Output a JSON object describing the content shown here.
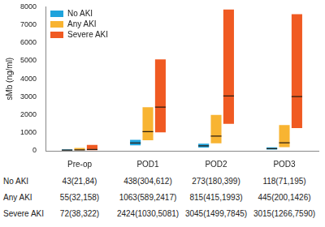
{
  "chart_data": {
    "type": "bar",
    "y_label": "sMb (ng/ml)",
    "categories": [
      "Pre-op",
      "POD1",
      "POD2",
      "POD3"
    ],
    "ylim": [
      0,
      8000
    ],
    "yticks": [
      0,
      1000,
      2000,
      3000,
      4000,
      5000,
      6000,
      7000,
      8000
    ],
    "grid": false,
    "legend": "top-left",
    "series": [
      {
        "name": "No AKI",
        "color": "#1fa3dc",
        "values": [
          43,
          438,
          273,
          118
        ],
        "q1": [
          21,
          304,
          180,
          71
        ],
        "q3": [
          84,
          612,
          399,
          195
        ]
      },
      {
        "name": "Any AKI",
        "color": "#f8b432",
        "values": [
          55,
          1063,
          815,
          445
        ],
        "q1": [
          32,
          589,
          415,
          200
        ],
        "q3": [
          158,
          2417,
          1993,
          1426
        ]
      },
      {
        "name": "Severe AKI",
        "color": "#f05a22",
        "values": [
          72,
          2424,
          3045,
          3015
        ],
        "q1": [
          38,
          1030,
          1499,
          1266
        ],
        "q3": [
          322,
          5081,
          7845,
          7590
        ]
      }
    ],
    "table": {
      "rows": [
        {
          "label": "No AKI",
          "cells": [
            "43(21,84)",
            "438(304,612)",
            "273(180,399)",
            "118(71,195)"
          ]
        },
        {
          "label": "Any AKI",
          "cells": [
            "55(32,158)",
            "1063(589,2417)",
            "815(415,1993)",
            "445(200,1426)"
          ]
        },
        {
          "label": "Severe AKI",
          "cells": [
            "72(38,322)",
            "2424(1030,5081)",
            "3045(1499,7845)",
            "3015(1266,7590)"
          ]
        }
      ]
    }
  }
}
